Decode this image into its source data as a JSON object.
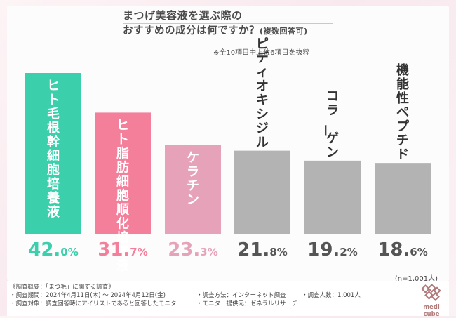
{
  "header": {
    "title_line1": "まつげ美容液を選ぶ際の",
    "title_line2": "おすすめの成分は何ですか？",
    "title_line2_paren": "(複数回答可)",
    "note": "※全10項目中上位6項目を抜粋"
  },
  "chart_data": {
    "type": "bar",
    "title": "まつげ美容液を選ぶ際の おすすめの成分は何ですか？(複数回答可)",
    "categories": [
      "ヒト毛根幹細胞培養液",
      "ヒト脂肪細胞順化培養液",
      "ケラチン",
      "ピディオキシジル",
      "コラーゲン",
      "機能性ペプチド"
    ],
    "values": [
      42.0,
      31.7,
      23.3,
      21.8,
      19.2,
      18.6
    ],
    "value_labels": [
      {
        "main": "42.",
        "dec": "0%"
      },
      {
        "main": "31.",
        "dec": "7%"
      },
      {
        "main": "23.",
        "dec": "3%"
      },
      {
        "main": "21.",
        "dec": "8%"
      },
      {
        "main": "19.",
        "dec": "2%"
      },
      {
        "main": "18.",
        "dec": "6%"
      }
    ],
    "unit": "%",
    "ylim": [
      0,
      44
    ],
    "grid": false,
    "colors": [
      "#3bcfac",
      "#f37f9b",
      "#e6a2b9",
      "#b3b3b3",
      "#b3b3b3",
      "#b3b3b3"
    ],
    "value_colors": [
      "#3bcfac",
      "#f37f9b",
      "#e6a2b9",
      "#555555",
      "#555555",
      "#555555"
    ],
    "label_colors": [
      "#ffffff",
      "#ffffff",
      "#ffffff",
      "#333333",
      "#333333",
      "#333333"
    ],
    "label_inside": [
      true,
      true,
      true,
      false,
      false,
      false
    ]
  },
  "sample": "(n=1,001人)",
  "footer": {
    "overview": "《調査概要：「まつ毛」に関する調査》",
    "period": "・調査期間：2024年4月11日(木) 〜 2024年4月12日(金)",
    "target": "・調査対象：調査回答時にアイリストであると回答したモニター",
    "method": "・調査方法：インターネット調査",
    "provider": "・モニター提供元：ゼネラルリサーチ",
    "count": "・調査人数：1,001人"
  },
  "logo": {
    "text": "medi cube"
  }
}
